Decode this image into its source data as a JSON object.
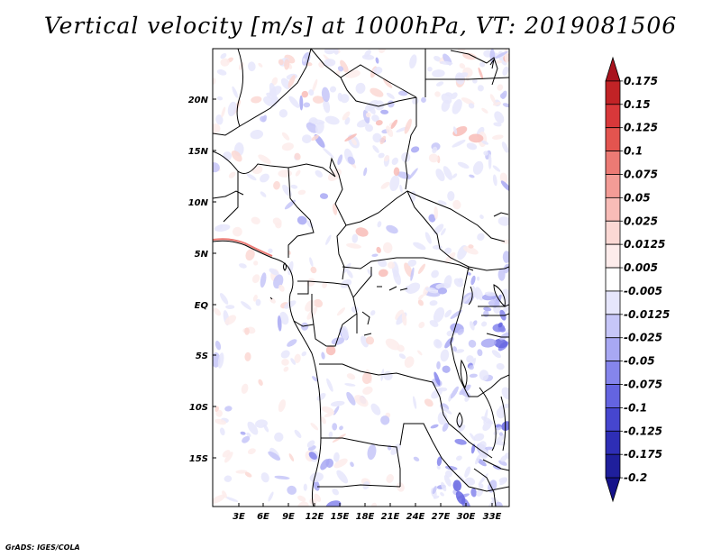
{
  "title": "Vertical velocity [m/s] at 1000hPa, VT: 2019081506",
  "credit": "GrADS: IGES/COLA",
  "map": {
    "lat_labels": [
      "20N",
      "15N",
      "10N",
      "5N",
      "EQ",
      "5S",
      "10S",
      "15S"
    ],
    "lon_labels": [
      "3E",
      "6E",
      "9E",
      "12E",
      "15E",
      "18E",
      "21E",
      "24E",
      "27E",
      "30E",
      "33E"
    ]
  },
  "colorbar": {
    "levels": [
      "0.175",
      "0.15",
      "0.125",
      "0.1",
      "0.075",
      "0.05",
      "0.025",
      "0.0125",
      "0.005",
      "-0.005",
      "-0.0125",
      "-0.025",
      "-0.05",
      "-0.075",
      "-0.1",
      "-0.125",
      "-0.175",
      "-0.2"
    ],
    "colors": [
      "#a8131d",
      "#c12326",
      "#d8383a",
      "#e3544f",
      "#ec7a74",
      "#f39c96",
      "#f8bcb7",
      "#fbd8d4",
      "#fdeceb",
      "#ffffff",
      "#e6e6fc",
      "#c6c6f8",
      "#a8a8f3",
      "#8585ec",
      "#6464e0",
      "#4646cf",
      "#2e2eb6",
      "#1f1f9c",
      "#15128a"
    ]
  }
}
